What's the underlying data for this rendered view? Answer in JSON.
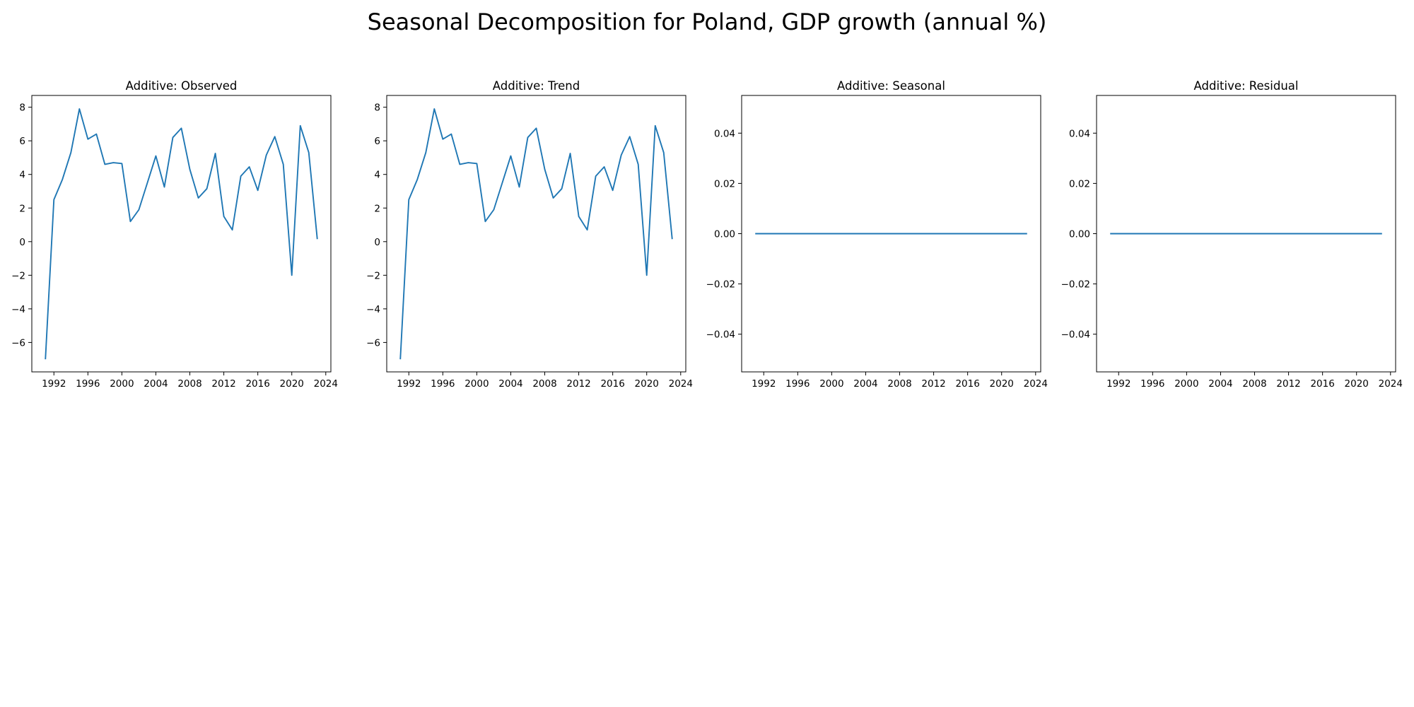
{
  "figure": {
    "title": "Seasonal Decomposition for Poland, GDP growth (annual %)"
  },
  "colors": {
    "line": "#1f77b4",
    "axes": "#000000",
    "background": "#ffffff"
  },
  "chart_data": [
    {
      "type": "line",
      "title": "Additive: Observed",
      "xlabel": "",
      "ylabel": "",
      "grid": false,
      "xlim": [
        1989.4,
        2024.6
      ],
      "ylim": [
        -7.75,
        8.7
      ],
      "x_ticks": [
        1992,
        1996,
        2000,
        2004,
        2008,
        2012,
        2016,
        2020,
        2024
      ],
      "x_tick_labels": [
        "1992",
        "1996",
        "2000",
        "2004",
        "2008",
        "2012",
        "2016",
        "2020",
        "2024"
      ],
      "y_ticks": [
        -6,
        -4,
        -2,
        0,
        2,
        4,
        6,
        8
      ],
      "y_tick_labels": [
        "−6",
        "−4",
        "−2",
        "0",
        "2",
        "4",
        "6",
        "8"
      ],
      "series": [
        {
          "x": [
            1991,
            1992,
            1993,
            1994,
            1995,
            1996,
            1997,
            1998,
            1999,
            2000,
            2001,
            2002,
            2003,
            2004,
            2005,
            2006,
            2007,
            2008,
            2009,
            2010,
            2011,
            2012,
            2013,
            2014,
            2015,
            2016,
            2017,
            2018,
            2019,
            2020,
            2021,
            2022,
            2023
          ],
          "values": [
            -7.0,
            2.5,
            3.7,
            5.3,
            7.9,
            6.1,
            6.4,
            4.6,
            4.7,
            4.65,
            1.2,
            1.9,
            3.5,
            5.1,
            3.25,
            6.2,
            6.75,
            4.3,
            2.6,
            3.15,
            5.25,
            1.5,
            0.7,
            3.9,
            4.45,
            3.05,
            5.15,
            6.25,
            4.6,
            -2.0,
            6.9,
            5.3,
            0.15
          ]
        }
      ]
    },
    {
      "type": "line",
      "title": "Additive: Trend",
      "xlabel": "",
      "ylabel": "",
      "grid": false,
      "xlim": [
        1989.4,
        2024.6
      ],
      "ylim": [
        -7.75,
        8.7
      ],
      "x_ticks": [
        1992,
        1996,
        2000,
        2004,
        2008,
        2012,
        2016,
        2020,
        2024
      ],
      "x_tick_labels": [
        "1992",
        "1996",
        "2000",
        "2004",
        "2008",
        "2012",
        "2016",
        "2020",
        "2024"
      ],
      "y_ticks": [
        -6,
        -4,
        -2,
        0,
        2,
        4,
        6,
        8
      ],
      "y_tick_labels": [
        "−6",
        "−4",
        "−2",
        "0",
        "2",
        "4",
        "6",
        "8"
      ],
      "series": [
        {
          "x": [
            1991,
            1992,
            1993,
            1994,
            1995,
            1996,
            1997,
            1998,
            1999,
            2000,
            2001,
            2002,
            2003,
            2004,
            2005,
            2006,
            2007,
            2008,
            2009,
            2010,
            2011,
            2012,
            2013,
            2014,
            2015,
            2016,
            2017,
            2018,
            2019,
            2020,
            2021,
            2022,
            2023
          ],
          "values": [
            -7.0,
            2.5,
            3.7,
            5.3,
            7.9,
            6.1,
            6.4,
            4.6,
            4.7,
            4.65,
            1.2,
            1.9,
            3.5,
            5.1,
            3.25,
            6.2,
            6.75,
            4.3,
            2.6,
            3.15,
            5.25,
            1.5,
            0.7,
            3.9,
            4.45,
            3.05,
            5.15,
            6.25,
            4.6,
            -2.0,
            6.9,
            5.3,
            0.15
          ]
        }
      ]
    },
    {
      "type": "line",
      "title": "Additive: Seasonal",
      "xlabel": "",
      "ylabel": "",
      "grid": false,
      "xlim": [
        1989.4,
        2024.6
      ],
      "ylim": [
        -0.055,
        0.055
      ],
      "x_ticks": [
        1992,
        1996,
        2000,
        2004,
        2008,
        2012,
        2016,
        2020,
        2024
      ],
      "x_tick_labels": [
        "1992",
        "1996",
        "2000",
        "2004",
        "2008",
        "2012",
        "2016",
        "2020",
        "2024"
      ],
      "y_ticks": [
        -0.04,
        -0.02,
        0.0,
        0.02,
        0.04
      ],
      "y_tick_labels": [
        "−0.04",
        "−0.02",
        "0.00",
        "0.02",
        "0.04"
      ],
      "series": [
        {
          "x": [
            1991,
            1992,
            1993,
            1994,
            1995,
            1996,
            1997,
            1998,
            1999,
            2000,
            2001,
            2002,
            2003,
            2004,
            2005,
            2006,
            2007,
            2008,
            2009,
            2010,
            2011,
            2012,
            2013,
            2014,
            2015,
            2016,
            2017,
            2018,
            2019,
            2020,
            2021,
            2022,
            2023
          ],
          "values": [
            0,
            0,
            0,
            0,
            0,
            0,
            0,
            0,
            0,
            0,
            0,
            0,
            0,
            0,
            0,
            0,
            0,
            0,
            0,
            0,
            0,
            0,
            0,
            0,
            0,
            0,
            0,
            0,
            0,
            0,
            0,
            0,
            0
          ]
        }
      ]
    },
    {
      "type": "line",
      "title": "Additive: Residual",
      "xlabel": "",
      "ylabel": "",
      "grid": false,
      "xlim": [
        1989.4,
        2024.6
      ],
      "ylim": [
        -0.055,
        0.055
      ],
      "x_ticks": [
        1992,
        1996,
        2000,
        2004,
        2008,
        2012,
        2016,
        2020,
        2024
      ],
      "x_tick_labels": [
        "1992",
        "1996",
        "2000",
        "2004",
        "2008",
        "2012",
        "2016",
        "2020",
        "2024"
      ],
      "y_ticks": [
        -0.04,
        -0.02,
        0.0,
        0.02,
        0.04
      ],
      "y_tick_labels": [
        "−0.04",
        "−0.02",
        "0.00",
        "0.02",
        "0.04"
      ],
      "series": [
        {
          "x": [
            1991,
            1992,
            1993,
            1994,
            1995,
            1996,
            1997,
            1998,
            1999,
            2000,
            2001,
            2002,
            2003,
            2004,
            2005,
            2006,
            2007,
            2008,
            2009,
            2010,
            2011,
            2012,
            2013,
            2014,
            2015,
            2016,
            2017,
            2018,
            2019,
            2020,
            2021,
            2022,
            2023
          ],
          "values": [
            0,
            0,
            0,
            0,
            0,
            0,
            0,
            0,
            0,
            0,
            0,
            0,
            0,
            0,
            0,
            0,
            0,
            0,
            0,
            0,
            0,
            0,
            0,
            0,
            0,
            0,
            0,
            0,
            0,
            0,
            0,
            0,
            0
          ]
        }
      ]
    }
  ]
}
